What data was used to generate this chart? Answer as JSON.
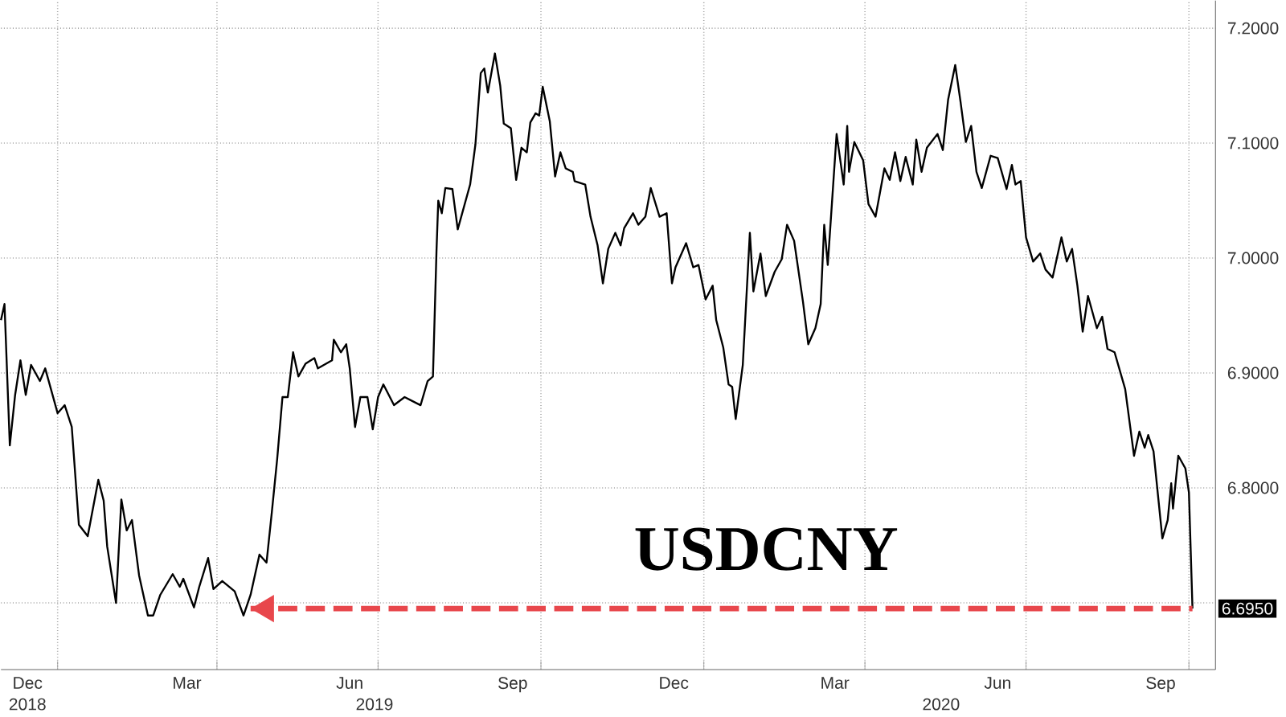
{
  "chart_data": {
    "type": "line",
    "title": "USDCNY",
    "xlim": [
      "2018-11-30",
      "2020-10-16"
    ],
    "ylim": [
      6.642,
      7.224
    ],
    "xticks": [
      {
        "value": "2018-12-15",
        "label": "Dec"
      },
      {
        "value": "2019-01-01",
        "label": null
      },
      {
        "value": "2019-03-15",
        "label": "Mar"
      },
      {
        "value": "2019-04-01",
        "label": null
      },
      {
        "value": "2019-06-15",
        "label": "Jun"
      },
      {
        "value": "2019-07-01",
        "label": null
      },
      {
        "value": "2019-09-15",
        "label": "Sep"
      },
      {
        "value": "2019-10-01",
        "label": null
      },
      {
        "value": "2019-12-15",
        "label": "Dec"
      },
      {
        "value": "2020-01-01",
        "label": null
      },
      {
        "value": "2020-03-15",
        "label": "Mar"
      },
      {
        "value": "2020-04-01",
        "label": null
      },
      {
        "value": "2020-06-15",
        "label": "Jun"
      },
      {
        "value": "2020-07-01",
        "label": null
      },
      {
        "value": "2020-09-15",
        "label": "Sep"
      },
      {
        "value": "2020-10-01",
        "label": null
      }
    ],
    "x2lim": [
      "2018-11-30",
      "2020-10-16"
    ],
    "x2ticks": [
      {
        "value": "2018-12-15",
        "label": "2018"
      },
      {
        "value": "2019-06-29",
        "label": "2019"
      },
      {
        "value": "2020-05-14",
        "label": "2020"
      }
    ],
    "yticks": [
      {
        "value": 6.7,
        "label": null
      },
      {
        "value": 6.8,
        "label": "6.8000"
      },
      {
        "value": 6.9,
        "label": "6.9000"
      },
      {
        "value": 7.0,
        "label": "7.0000"
      },
      {
        "value": 7.1,
        "label": "7.1000"
      },
      {
        "value": 7.2,
        "label": "7.2000"
      }
    ],
    "grid": true,
    "series": [
      {
        "color": "#000000",
        "x": [
          "2018-11-30",
          "2018-12-02",
          "2018-12-05",
          "2018-12-08",
          "2018-12-11",
          "2018-12-14",
          "2018-12-17",
          "2018-12-22",
          "2018-12-25",
          "2019-01-01",
          "2019-01-05",
          "2019-01-09",
          "2019-01-13",
          "2019-01-18",
          "2019-01-24",
          "2019-01-27",
          "2019-01-29",
          "2019-02-03",
          "2019-02-06",
          "2019-02-09",
          "2019-02-12",
          "2019-02-16",
          "2019-02-21",
          "2019-02-24",
          "2019-02-28",
          "2019-03-07",
          "2019-03-11",
          "2019-03-13",
          "2019-03-19",
          "2019-03-22",
          "2019-03-27",
          "2019-03-30",
          "2019-04-04",
          "2019-04-11",
          "2019-04-16",
          "2019-04-20",
          "2019-04-25",
          "2019-04-29",
          "2019-05-02",
          "2019-05-05",
          "2019-05-08",
          "2019-05-11",
          "2019-05-14",
          "2019-05-17",
          "2019-05-21",
          "2019-05-26",
          "2019-05-28",
          "2019-06-05",
          "2019-06-06",
          "2019-06-10",
          "2019-06-13",
          "2019-06-15",
          "2019-06-18",
          "2019-06-21",
          "2019-06-25",
          "2019-06-28",
          "2019-07-01",
          "2019-07-04",
          "2019-07-10",
          "2019-07-16",
          "2019-07-25",
          "2019-07-29",
          "2019-08-01",
          "2019-08-03",
          "2019-08-04",
          "2019-08-06",
          "2019-08-08",
          "2019-08-12",
          "2019-08-15",
          "2019-08-22",
          "2019-08-25",
          "2019-08-28",
          "2019-08-30",
          "2019-09-01",
          "2019-09-05",
          "2019-09-08",
          "2019-09-10",
          "2019-09-14",
          "2019-09-17",
          "2019-09-20",
          "2019-09-23",
          "2019-09-25",
          "2019-09-28",
          "2019-09-30",
          "2019-10-02",
          "2019-10-06",
          "2019-10-09",
          "2019-10-12",
          "2019-10-15",
          "2019-10-19",
          "2019-10-20",
          "2019-10-26",
          "2019-10-29",
          "2019-11-02",
          "2019-11-05",
          "2019-11-08",
          "2019-11-12",
          "2019-11-15",
          "2019-11-17",
          "2019-11-22",
          "2019-11-25",
          "2019-11-29",
          "2019-12-02",
          "2019-12-07",
          "2019-12-11",
          "2019-12-14",
          "2019-12-16",
          "2019-12-22",
          "2019-12-26",
          "2019-12-29",
          "2020-01-02",
          "2020-01-06",
          "2020-01-08",
          "2020-01-12",
          "2020-01-15",
          "2020-01-17",
          "2020-01-19",
          "2020-01-23",
          "2020-01-27",
          "2020-01-29",
          "2020-02-02",
          "2020-02-05",
          "2020-02-10",
          "2020-02-14",
          "2020-02-17",
          "2020-02-21",
          "2020-02-26",
          "2020-02-29",
          "2020-03-04",
          "2020-03-07",
          "2020-03-09",
          "2020-03-11",
          "2020-03-16",
          "2020-03-20",
          "2020-03-22",
          "2020-03-23",
          "2020-03-26",
          "2020-03-31",
          "2020-04-03",
          "2020-04-07",
          "2020-04-12",
          "2020-04-15",
          "2020-04-18",
          "2020-04-21",
          "2020-04-24",
          "2020-04-28",
          "2020-04-30",
          "2020-05-03",
          "2020-05-06",
          "2020-05-12",
          "2020-05-15",
          "2020-05-18",
          "2020-05-22",
          "2020-05-25",
          "2020-05-28",
          "2020-05-31",
          "2020-06-03",
          "2020-06-06",
          "2020-06-11",
          "2020-06-15",
          "2020-06-20",
          "2020-06-23",
          "2020-06-25",
          "2020-06-28",
          "2020-07-01",
          "2020-07-05",
          "2020-07-09",
          "2020-07-12",
          "2020-07-16",
          "2020-07-21",
          "2020-07-24",
          "2020-07-27",
          "2020-07-30",
          "2020-08-02",
          "2020-08-05",
          "2020-08-10",
          "2020-08-13",
          "2020-08-16",
          "2020-08-20",
          "2020-08-26",
          "2020-08-31",
          "2020-09-03",
          "2020-09-06",
          "2020-09-08",
          "2020-09-11",
          "2020-09-16",
          "2020-09-19",
          "2020-09-21",
          "2020-09-22",
          "2020-09-25",
          "2020-09-29",
          "2020-10-01",
          "2020-10-03"
        ],
        "values": [
          6.946,
          6.96,
          6.837,
          6.881,
          6.911,
          6.881,
          6.907,
          6.893,
          6.904,
          6.865,
          6.872,
          6.853,
          6.768,
          6.758,
          6.807,
          6.789,
          6.749,
          6.7,
          6.79,
          6.763,
          6.772,
          6.724,
          6.689,
          6.689,
          6.707,
          6.725,
          6.714,
          6.721,
          6.696,
          6.714,
          6.739,
          6.712,
          6.719,
          6.71,
          6.689,
          6.707,
          6.742,
          6.735,
          6.779,
          6.825,
          6.879,
          6.879,
          6.918,
          6.897,
          6.908,
          6.913,
          6.904,
          6.911,
          6.929,
          6.918,
          6.925,
          6.904,
          6.853,
          6.879,
          6.879,
          6.851,
          6.879,
          6.89,
          6.872,
          6.879,
          6.872,
          6.893,
          6.897,
          7.006,
          7.05,
          7.039,
          7.061,
          7.06,
          7.025,
          7.064,
          7.099,
          7.161,
          7.165,
          7.144,
          7.178,
          7.15,
          7.117,
          7.113,
          7.068,
          7.096,
          7.092,
          7.118,
          7.126,
          7.124,
          7.149,
          7.119,
          7.071,
          7.092,
          7.078,
          7.075,
          7.067,
          7.064,
          7.036,
          7.011,
          6.978,
          7.008,
          7.022,
          7.011,
          7.026,
          7.039,
          7.029,
          7.036,
          7.061,
          7.036,
          7.039,
          6.978,
          6.992,
          7.013,
          6.992,
          6.994,
          6.964,
          6.976,
          6.946,
          6.922,
          6.89,
          6.888,
          6.86,
          6.907,
          7.022,
          6.971,
          7.004,
          6.967,
          6.988,
          6.999,
          7.029,
          7.015,
          6.962,
          6.925,
          6.939,
          6.96,
          7.029,
          6.994,
          7.108,
          7.064,
          7.115,
          7.075,
          7.101,
          7.085,
          7.047,
          7.036,
          7.078,
          7.068,
          7.092,
          7.067,
          7.088,
          7.064,
          7.103,
          7.075,
          7.096,
          7.108,
          7.094,
          7.138,
          7.168,
          7.136,
          7.101,
          7.115,
          7.075,
          7.061,
          7.089,
          7.087,
          7.06,
          7.081,
          7.064,
          7.067,
          7.018,
          6.997,
          7.004,
          6.99,
          6.983,
          7.018,
          6.997,
          7.008,
          6.976,
          6.936,
          6.967,
          6.939,
          6.949,
          6.921,
          6.918,
          6.886,
          6.828,
          6.849,
          6.835,
          6.846,
          6.832,
          6.756,
          6.772,
          6.804,
          6.782,
          6.828,
          6.817,
          6.796,
          6.695
        ]
      },
      {
        "color": "#e8474c",
        "line_style": "dashed",
        "x": [
          "2019-04-20",
          "2020-10-03"
        ],
        "values": [
          6.695,
          6.695
        ],
        "value_labels": [
          null,
          "6.6950"
        ]
      }
    ]
  }
}
